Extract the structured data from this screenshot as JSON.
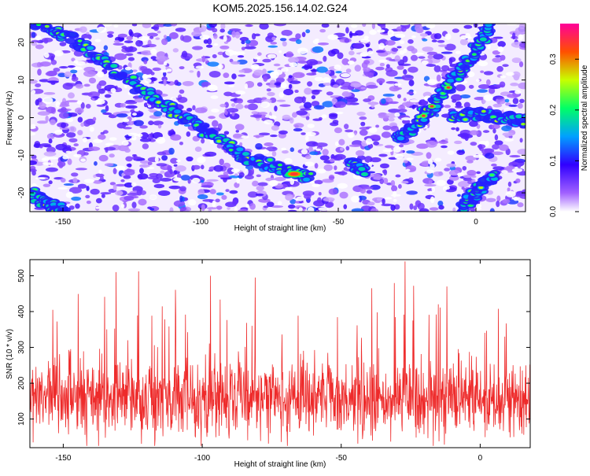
{
  "title": "KOM5.2025.156.14.02.G24",
  "chart_data": [
    {
      "type": "heatmap",
      "title": "KOM5.2025.156.14.02.G24",
      "xlabel": "Height of straight line (km)",
      "ylabel": "Frequency (Hz)",
      "xlim": [
        -162,
        18
      ],
      "ylim": [
        -25,
        25
      ],
      "x_ticks": [
        -150,
        -100,
        -50,
        0
      ],
      "x_tick_labels": [
        "-150",
        "-100",
        "-50",
        "0"
      ],
      "y_ticks": [
        -20,
        -10,
        0,
        10,
        20
      ],
      "y_tick_labels": [
        "-20",
        "-10",
        "0",
        "10",
        "20"
      ],
      "colorbar": {
        "label": "Normalized spectral amplitude",
        "range": [
          0.0,
          0.37
        ],
        "ticks": [
          0.0,
          0.1,
          0.2,
          0.3
        ],
        "tick_labels": [
          "0.0",
          "0.1",
          "0.2",
          "0.3"
        ],
        "colors": [
          "#ffffff",
          "#8800ff",
          "#0000ff",
          "#00ccff",
          "#00ff55",
          "#ffff00",
          "#ff0000",
          "#ff0099"
        ]
      },
      "ridges": [
        {
          "x": [
            -160,
            -145,
            -130,
            -115,
            -100,
            -85,
            -70,
            -60
          ],
          "y": [
            25,
            20,
            12,
            4,
            -3,
            -10,
            -14,
            -16
          ],
          "peak_x": -66,
          "peak_y": -15,
          "peak_value": 0.37
        },
        {
          "x": [
            -28,
            -22,
            -16,
            -8,
            0,
            6
          ],
          "y": [
            -6,
            -2,
            3,
            10,
            18,
            25
          ]
        },
        {
          "x": [
            -8,
            0,
            10,
            18
          ],
          "y": [
            0,
            1,
            0,
            -1
          ]
        },
        {
          "x": [
            -6,
            0,
            6
          ],
          "y": [
            -25,
            -20,
            -15
          ]
        },
        {
          "x": [
            -162,
            -155,
            -150
          ],
          "y": [
            -20,
            -23,
            -25
          ]
        },
        {
          "x": [
            -45,
            -40
          ],
          "y": [
            -12,
            -14
          ]
        }
      ]
    },
    {
      "type": "line",
      "xlabel": "Height of straight line (km)",
      "ylabel": "SNR (10 * v/v)",
      "xlim": [
        -162,
        18
      ],
      "ylim": [
        20,
        545
      ],
      "x_ticks": [
        -150,
        -100,
        -50,
        0
      ],
      "x_tick_labels": [
        "-150",
        "-100",
        "-50",
        "0"
      ],
      "y_ticks": [
        100,
        200,
        300,
        400,
        500
      ],
      "y_tick_labels": [
        "100",
        "200",
        "300",
        "400",
        "500"
      ],
      "color": "#ee2b2b",
      "description_values": {
        "mean": 155,
        "spread": 70,
        "max": 540,
        "min": 25
      },
      "peaks": [
        {
          "x": -131,
          "y": 510
        },
        {
          "x": -97,
          "y": 500
        },
        {
          "x": -81,
          "y": 495
        },
        {
          "x": -27,
          "y": 540
        },
        {
          "x": -39,
          "y": 465
        },
        {
          "x": -12,
          "y": 470
        }
      ]
    }
  ]
}
